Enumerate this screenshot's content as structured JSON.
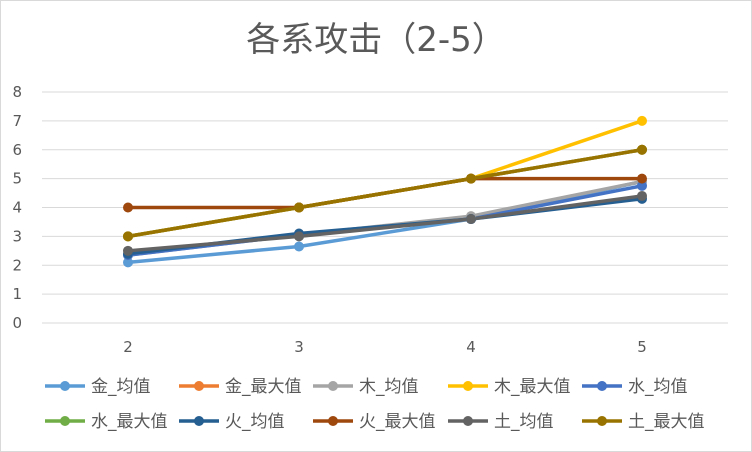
{
  "chart_data": {
    "type": "line",
    "title": "各系攻击（2-5）",
    "xlabel": "",
    "ylabel": "",
    "x": [
      "2",
      "3",
      "4",
      "5"
    ],
    "ylim": [
      0,
      8
    ],
    "yticks": [
      "0",
      "1",
      "2",
      "3",
      "4",
      "5",
      "6",
      "7",
      "8"
    ],
    "grid": true,
    "legend": "bottom",
    "series": [
      {
        "name": "金_均值",
        "color": "#5B9BD5",
        "values": [
          2.1,
          2.65,
          3.6,
          4.9
        ]
      },
      {
        "name": "金_最大值",
        "color": "#ED7D31",
        "values": [
          3,
          4,
          5,
          6
        ]
      },
      {
        "name": "木_均值",
        "color": "#A5A5A5",
        "values": [
          2.35,
          3.05,
          3.7,
          4.9
        ]
      },
      {
        "name": "木_最大值",
        "color": "#FFC000",
        "values": [
          3,
          4,
          5,
          7
        ]
      },
      {
        "name": "水_均值",
        "color": "#4472C4",
        "values": [
          2.35,
          3.05,
          3.6,
          4.75
        ]
      },
      {
        "name": "水_最大值",
        "color": "#70AD47",
        "values": [
          3,
          4,
          5,
          6
        ]
      },
      {
        "name": "火_均值",
        "color": "#255E91",
        "values": [
          2.4,
          3.1,
          3.6,
          4.3
        ]
      },
      {
        "name": "火_最大值",
        "color": "#9E480E",
        "values": [
          4,
          4,
          5,
          5
        ]
      },
      {
        "name": "土_均值",
        "color": "#636363",
        "values": [
          2.5,
          3.0,
          3.6,
          4.4
        ]
      },
      {
        "name": "土_最大值",
        "color": "#997300",
        "values": [
          3,
          4,
          5,
          6
        ]
      }
    ]
  }
}
